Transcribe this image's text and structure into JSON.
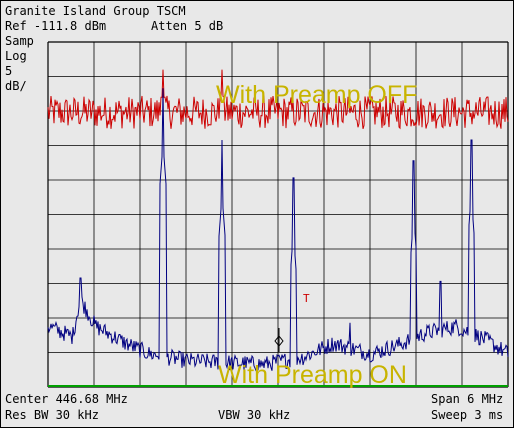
{
  "header": {
    "title": "Granite Island Group TSCM",
    "ref": "Ref -111.8 dBm",
    "atten": "Atten 5 dB",
    "samp": "Samp",
    "log": "Log",
    "scale_val": "5",
    "scale_unit": "dB/"
  },
  "footer": {
    "center": "Center 446.68 MHz",
    "span": "Span 6 MHz",
    "res_bw": "Res BW 30 kHz",
    "vbw": "VBW 30 kHz",
    "sweep": "Sweep 3 ms"
  },
  "marker": {
    "label": "T"
  },
  "colors": {
    "grid": "#000000",
    "preamp_off": "#cc0000",
    "preamp_on": "#000080",
    "annotation": "#c8b400",
    "floor_line": "#00a000",
    "background": "#e8e8e8"
  },
  "chart_data": {
    "type": "line",
    "x_unit": "MHz",
    "y_unit": "dBm",
    "xlim": [
      443.68,
      449.68
    ],
    "ylim": [
      -161.8,
      -111.8
    ],
    "grid": true,
    "annotations": [
      "With Preamp OFF",
      "With Preamp ON"
    ],
    "series": [
      {
        "name": "With Preamp OFF",
        "color": "#cc0000",
        "baseline_dbm": -122.0,
        "noise_db": 1.2,
        "peaks": [
          {
            "mhz": 445.18,
            "dbm": -115.8
          },
          {
            "mhz": 445.95,
            "dbm": -115.8
          }
        ]
      },
      {
        "name": "With Preamp ON",
        "color": "#000080",
        "peaks": [
          {
            "mhz": 445.18,
            "dbm": -118.5
          },
          {
            "mhz": 445.95,
            "dbm": -126.0
          },
          {
            "mhz": 446.88,
            "dbm": -131.5
          },
          {
            "mhz": 447.62,
            "dbm": -152.5
          },
          {
            "mhz": 448.45,
            "dbm": -129.0
          },
          {
            "mhz": 449.2,
            "dbm": -126.0
          },
          {
            "mhz": 448.8,
            "dbm": -146.5
          },
          {
            "mhz": 444.1,
            "dbm": -146.0
          }
        ],
        "floor_points": [
          [
            443.68,
            -153.0
          ],
          [
            444.0,
            -154.5
          ],
          [
            444.1,
            -149.0
          ],
          [
            444.3,
            -153.0
          ],
          [
            444.7,
            -155.5
          ],
          [
            445.0,
            -157.0
          ],
          [
            445.5,
            -158.0
          ],
          [
            446.5,
            -158.5
          ],
          [
            447.0,
            -157.5
          ],
          [
            447.4,
            -155.5
          ],
          [
            447.9,
            -157.0
          ],
          [
            448.3,
            -155.5
          ],
          [
            448.6,
            -154.0
          ],
          [
            449.0,
            -153.0
          ],
          [
            449.4,
            -155.0
          ],
          [
            449.68,
            -157.0
          ]
        ]
      }
    ]
  }
}
